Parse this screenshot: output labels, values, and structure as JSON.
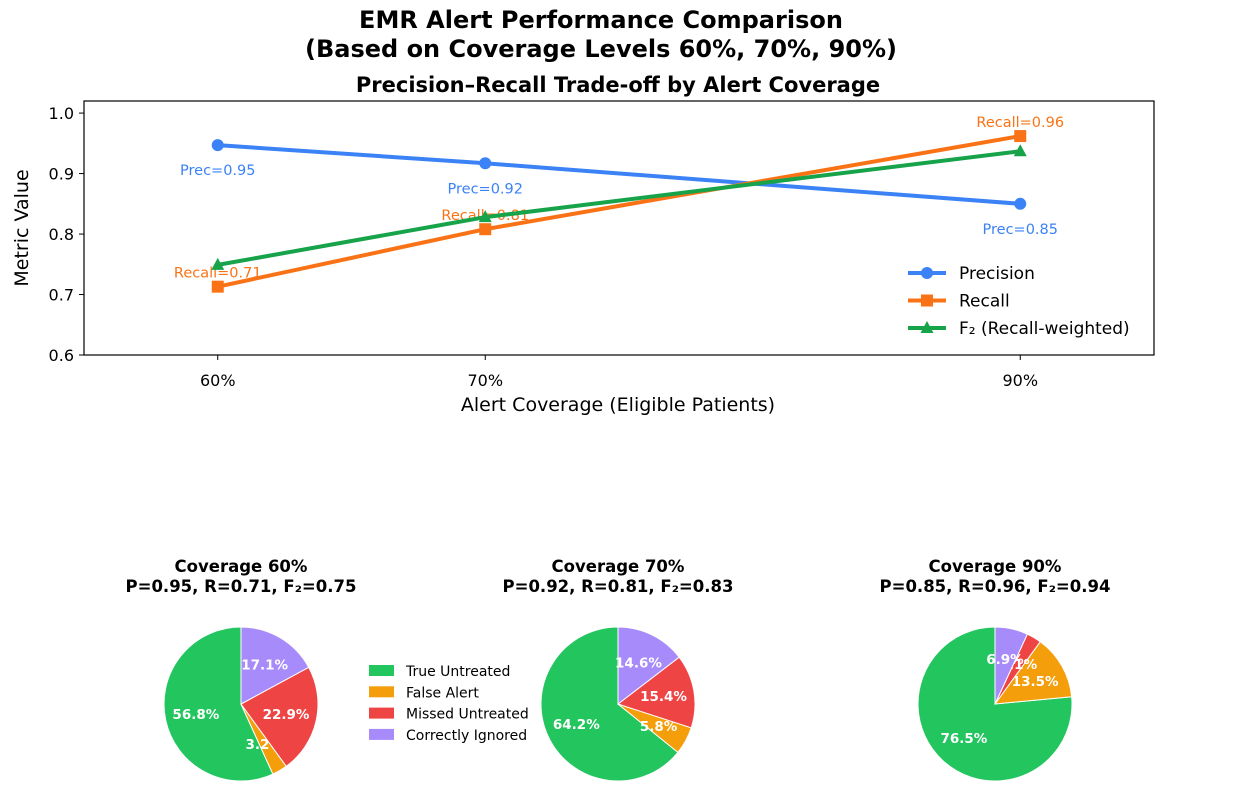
{
  "suptitle": [
    "EMR Alert Performance Comparison",
    "(Based on Coverage Levels 60%, 70%, 90%)"
  ],
  "chart_data": [
    {
      "type": "line",
      "title": "Precision–Recall Trade-off by Alert Coverage",
      "xlabel": "Alert Coverage (Eligible Patients)",
      "ylabel": "Metric Value",
      "x": [
        60,
        70,
        90
      ],
      "x_ticks": [
        "60%",
        "70%",
        "90%"
      ],
      "ylim": [
        0.6,
        1.02
      ],
      "y_ticks": [
        "0.6",
        "0.7",
        "0.8",
        "0.9",
        "1.0"
      ],
      "legend_position": "lower-right",
      "series": [
        {
          "name": "Precision",
          "values": [
            0.947,
            0.917,
            0.85
          ],
          "color": "#3b82f6",
          "marker": "circle",
          "labels": [
            "Prec=0.95",
            "Prec=0.92",
            "Prec=0.85"
          ]
        },
        {
          "name": "Recall",
          "values": [
            0.713,
            0.808,
            0.962
          ],
          "color": "#f97316",
          "marker": "square",
          "labels": [
            "Recall=0.71",
            "Recall=0.81",
            "Recall=0.96"
          ]
        },
        {
          "name": "F₂ (Recall-weighted)",
          "values": [
            0.749,
            0.828,
            0.937
          ],
          "color": "#16a34a",
          "marker": "triangle",
          "labels": []
        }
      ]
    },
    {
      "type": "pie",
      "title": "Coverage 60%",
      "subtitle": "P=0.95, R=0.71, F₂=0.75",
      "values": [
        56.8,
        3.2,
        22.9,
        17.1
      ],
      "labels": [
        "56.8%",
        "3.2%",
        "22.9%",
        "17.1%"
      ]
    },
    {
      "type": "pie",
      "title": "Coverage 70%",
      "subtitle": "P=0.92, R=0.81, F₂=0.83",
      "values": [
        64.2,
        5.8,
        15.4,
        14.6
      ],
      "labels": [
        "64.2%",
        "5.8%",
        "15.4%",
        "14.6%"
      ]
    },
    {
      "type": "pie",
      "title": "Coverage 90%",
      "subtitle": "P=0.85, R=0.96, F₂=0.94",
      "values": [
        76.5,
        13.5,
        3.1,
        6.9
      ],
      "labels": [
        "76.5%",
        "13.5%",
        "3.1%",
        "6.9%"
      ]
    }
  ],
  "pie_categories": [
    "True Untreated",
    "False Alert",
    "Missed Untreated",
    "Correctly Ignored"
  ],
  "pie_colors": [
    "#22c55e",
    "#f59e0b",
    "#ef4444",
    "#a78bfa"
  ]
}
